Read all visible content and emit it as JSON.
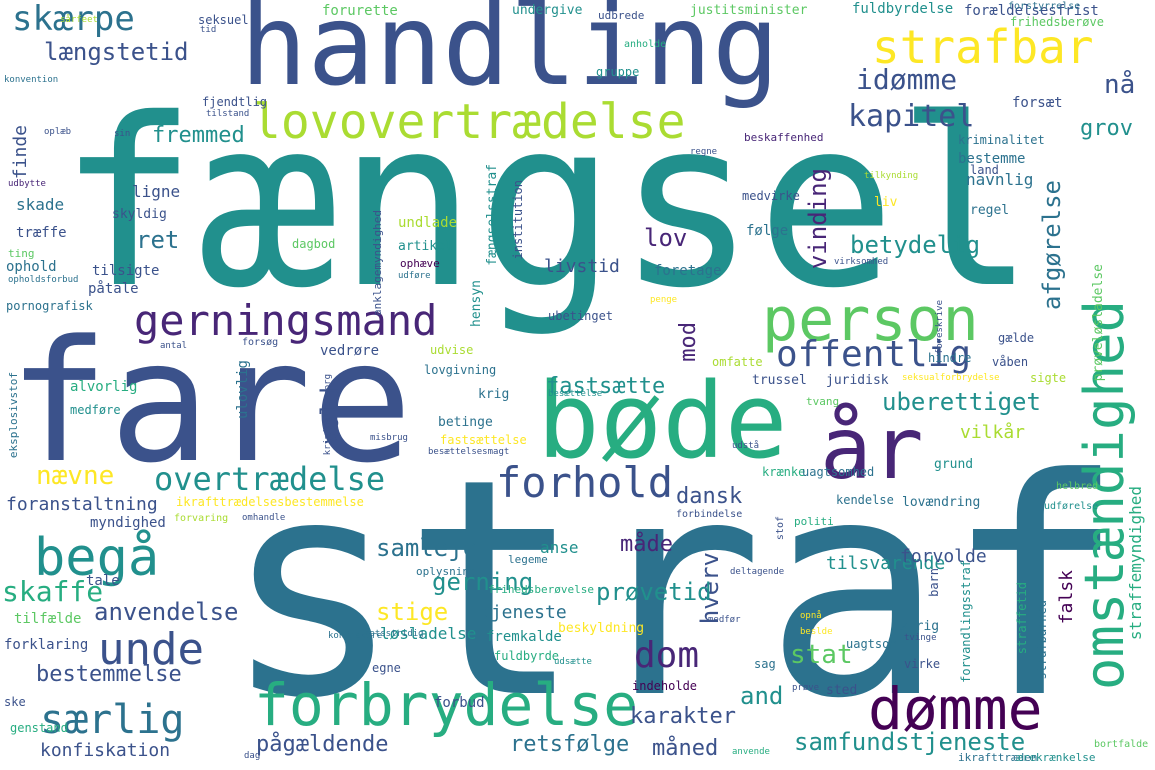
{
  "colors": {
    "background": "#ffffff",
    "palette": [
      "#440154",
      "#482677",
      "#3b528b",
      "#2c728e",
      "#21908d",
      "#27ad81",
      "#5cc863",
      "#aadc32",
      "#fde725"
    ]
  },
  "words": [
    {
      "text": "straf",
      "color": "#2c728e"
    },
    {
      "text": "fængsel",
      "color": "#21908d"
    },
    {
      "text": "fare",
      "color": "#3b528b"
    },
    {
      "text": "handling",
      "color": "#3b528b"
    },
    {
      "text": "bøde",
      "color": "#27ad81"
    },
    {
      "text": "år",
      "color": "#482677"
    },
    {
      "text": "person",
      "color": "#5cc863"
    },
    {
      "text": "omstændighed",
      "color": "#27ad81"
    },
    {
      "text": "forbrydelse",
      "color": "#27ad81"
    },
    {
      "text": "lovovertrædelse",
      "color": "#aadc32"
    },
    {
      "text": "strafbar",
      "color": "#fde725"
    },
    {
      "text": "begå",
      "color": "#21908d"
    },
    {
      "text": "gerningsmand",
      "color": "#482677"
    },
    {
      "text": "dømme",
      "color": "#440154"
    },
    {
      "text": "særlig",
      "color": "#2c728e"
    },
    {
      "text": "unde",
      "color": "#3b528b"
    },
    {
      "text": "offentlig",
      "color": "#3b528b"
    },
    {
      "text": "forhold",
      "color": "#3b528b"
    },
    {
      "text": "overtrædelse",
      "color": "#21908d"
    },
    {
      "text": "skærpe",
      "color": "#2c728e"
    },
    {
      "text": "længstetid",
      "color": "#3b528b"
    },
    {
      "text": "idømme",
      "color": "#3b528b"
    },
    {
      "text": "kapitel",
      "color": "#3b528b"
    },
    {
      "text": "nå",
      "color": "#3b528b"
    },
    {
      "text": "dom",
      "color": "#482677"
    },
    {
      "text": "nævne",
      "color": "#fde725"
    },
    {
      "text": "uberettiget",
      "color": "#21908d"
    },
    {
      "text": "betydelig",
      "color": "#21908d"
    },
    {
      "text": "fremmed",
      "color": "#21908d"
    },
    {
      "text": "ret",
      "color": "#2c728e"
    },
    {
      "text": "lov",
      "color": "#482677"
    },
    {
      "text": "vinding",
      "color": "#482677"
    },
    {
      "text": "afgørelse",
      "color": "#2c728e"
    },
    {
      "text": "grov",
      "color": "#21908d"
    },
    {
      "text": "mod",
      "color": "#482677"
    },
    {
      "text": "fastsætte",
      "color": "#21908d"
    },
    {
      "text": "vold",
      "color": "#3b528b"
    },
    {
      "text": "dansk",
      "color": "#3b528b"
    },
    {
      "text": "gerning",
      "color": "#21908d"
    },
    {
      "text": "samleje",
      "color": "#2c728e"
    },
    {
      "text": "stige",
      "color": "#fde725"
    },
    {
      "text": "skaffe",
      "color": "#27ad81"
    },
    {
      "text": "anvendelse",
      "color": "#3b528b"
    },
    {
      "text": "bestemmelse",
      "color": "#3b528b"
    },
    {
      "text": "måde",
      "color": "#482677"
    },
    {
      "text": "hverv",
      "color": "#3b528b"
    },
    {
      "text": "prøvetid",
      "color": "#21908d"
    },
    {
      "text": "stat",
      "color": "#5cc863"
    },
    {
      "text": "samfundstjeneste",
      "color": "#21908d"
    },
    {
      "text": "karakter",
      "color": "#3b528b"
    },
    {
      "text": "and",
      "color": "#21908d"
    },
    {
      "text": "pågældende",
      "color": "#3b528b"
    },
    {
      "text": "retsfølge",
      "color": "#2c728e"
    },
    {
      "text": "måned",
      "color": "#3b528b"
    },
    {
      "text": "konfiskation",
      "color": "#3b528b"
    },
    {
      "text": "straffemyndighed",
      "color": "#27ad81"
    },
    {
      "text": "foranstaltning",
      "color": "#3b528b"
    },
    {
      "text": "vilkår",
      "color": "#aadc32"
    },
    {
      "text": "tilsvarende",
      "color": "#21908d"
    },
    {
      "text": "forvolde",
      "color": "#3b528b"
    },
    {
      "text": "tjeneste",
      "color": "#2c728e"
    },
    {
      "text": "løsladelse",
      "color": "#21908d"
    },
    {
      "text": "fremkalde",
      "color": "#21908d"
    },
    {
      "text": "livstid",
      "color": "#3b528b"
    },
    {
      "text": "foretage",
      "color": "#2c728e"
    },
    {
      "text": "falsk",
      "color": "#440154"
    },
    {
      "text": "finde",
      "color": "#3b528b"
    },
    {
      "text": "skade",
      "color": "#2c728e"
    },
    {
      "text": "ligne",
      "color": "#3b528b"
    },
    {
      "text": "navnlig",
      "color": "#2c728e"
    },
    {
      "text": "bestemme",
      "color": "#2c728e"
    },
    {
      "text": "forsæt",
      "color": "#3b528b"
    },
    {
      "text": "kriminalitet",
      "color": "#2c728e"
    },
    {
      "text": "beskaffenhed",
      "color": "#482677"
    },
    {
      "text": "fjendtlig",
      "color": "#3b528b"
    },
    {
      "text": "forurette",
      "color": "#5cc863"
    },
    {
      "text": "fuldbyrdelse",
      "color": "#21908d"
    },
    {
      "text": "justitsminister",
      "color": "#5cc863"
    },
    {
      "text": "forældelsesfrist",
      "color": "#3b528b"
    },
    {
      "text": "undergive",
      "color": "#21908d"
    },
    {
      "text": "seksuel",
      "color": "#3b528b"
    },
    {
      "text": "udbrede",
      "color": "#3b528b"
    },
    {
      "text": "frihedsberøve",
      "color": "#5cc863"
    },
    {
      "text": "forstyrrelse",
      "color": "#2c728e"
    },
    {
      "text": "gruppe",
      "color": "#21908d"
    },
    {
      "text": "anholde",
      "color": "#27ad81"
    },
    {
      "text": "skyldig",
      "color": "#3b528b"
    },
    {
      "text": "træffe",
      "color": "#3b528b"
    },
    {
      "text": "ophold",
      "color": "#2c728e"
    },
    {
      "text": "tilsigte",
      "color": "#3b528b"
    },
    {
      "text": "påtale",
      "color": "#3b528b"
    },
    {
      "text": "pornografisk",
      "color": "#2c728e"
    },
    {
      "text": "alvorlig",
      "color": "#27ad81"
    },
    {
      "text": "medføre",
      "color": "#21908d"
    },
    {
      "text": "forklaring",
      "color": "#3b528b"
    },
    {
      "text": "tilfælde",
      "color": "#5cc863"
    },
    {
      "text": "tale",
      "color": "#3b528b"
    },
    {
      "text": "myndighed",
      "color": "#3b528b"
    },
    {
      "text": "genstand",
      "color": "#27ad81"
    },
    {
      "text": "ske",
      "color": "#3b528b"
    },
    {
      "text": "undlade",
      "color": "#aadc32"
    },
    {
      "text": "dagbod",
      "color": "#5cc863"
    },
    {
      "text": "artikel",
      "color": "#21908d"
    },
    {
      "text": "ophæve",
      "color": "#440154"
    },
    {
      "text": "følge",
      "color": "#2c728e"
    },
    {
      "text": "medvirke",
      "color": "#3b528b"
    },
    {
      "text": "liv",
      "color": "#fde725"
    },
    {
      "text": "regel",
      "color": "#2c728e"
    },
    {
      "text": "land",
      "color": "#3b528b"
    },
    {
      "text": "ubetinget",
      "color": "#3b528b"
    },
    {
      "text": "hensyn",
      "color": "#21908d"
    },
    {
      "text": "fængselsstraf",
      "color": "#21908d"
    },
    {
      "text": "institution",
      "color": "#3b528b"
    },
    {
      "text": "anklagemyndighed",
      "color": "#3b528b"
    },
    {
      "text": "vedrøre",
      "color": "#3b528b"
    },
    {
      "text": "udvise",
      "color": "#aadc32"
    },
    {
      "text": "ulovlig",
      "color": "#2c728e"
    },
    {
      "text": "forsøg",
      "color": "#3b528b"
    },
    {
      "text": "lovgivning",
      "color": "#2c728e"
    },
    {
      "text": "krig",
      "color": "#2c728e"
    },
    {
      "text": "betinge",
      "color": "#2c728e"
    },
    {
      "text": "fastsættelse",
      "color": "#fde725"
    },
    {
      "text": "ikrafttrædelsesbestemmelse",
      "color": "#fde725"
    },
    {
      "text": "omfatte",
      "color": "#aadc32"
    },
    {
      "text": "hindre",
      "color": "#2c728e"
    },
    {
      "text": "våben",
      "color": "#3b528b"
    },
    {
      "text": "sigte",
      "color": "#aadc32"
    },
    {
      "text": "gælde",
      "color": "#3b528b"
    },
    {
      "text": "trussel",
      "color": "#3b528b"
    },
    {
      "text": "juridisk",
      "color": "#3b528b"
    },
    {
      "text": "tvang",
      "color": "#5cc863"
    },
    {
      "text": "krænke",
      "color": "#27ad81"
    },
    {
      "text": "uagtsomhed",
      "color": "#2c728e"
    },
    {
      "text": "grund",
      "color": "#21908d"
    },
    {
      "text": "kendelse",
      "color": "#2c728e"
    },
    {
      "text": "lovændring",
      "color": "#2c728e"
    },
    {
      "text": "prøveløsladelse",
      "color": "#5cc863"
    },
    {
      "text": "anse",
      "color": "#21908d"
    },
    {
      "text": "legeme",
      "color": "#2c728e"
    },
    {
      "text": "oplysning",
      "color": "#2c728e"
    },
    {
      "text": "frihedsberøvelse",
      "color": "#27ad81"
    },
    {
      "text": "beskyldning",
      "color": "#fde725"
    },
    {
      "text": "egne",
      "color": "#3b528b"
    },
    {
      "text": "fuldbyrde",
      "color": "#27ad81"
    },
    {
      "text": "forbud",
      "color": "#3b528b"
    },
    {
      "text": "indeholde",
      "color": "#440154"
    },
    {
      "text": "uagtsom",
      "color": "#2c728e"
    },
    {
      "text": "sag",
      "color": "#2c728e"
    },
    {
      "text": "sted",
      "color": "#3b528b"
    },
    {
      "text": "virke",
      "color": "#3b528b"
    },
    {
      "text": "øvrig",
      "color": "#2c728e"
    },
    {
      "text": "forvandlingsstraf",
      "color": "#21908d"
    },
    {
      "text": "barn",
      "color": "#3b528b"
    },
    {
      "text": "straffetid",
      "color": "#27ad81"
    },
    {
      "text": "strafbarhed",
      "color": "#2c728e"
    },
    {
      "text": "stof",
      "color": "#3b528b"
    },
    {
      "text": "politi",
      "color": "#27ad81"
    },
    {
      "text": "forbindelse",
      "color": "#3b528b"
    },
    {
      "text": "udførelse",
      "color": "#21908d"
    },
    {
      "text": "helbred",
      "color": "#5cc863"
    },
    {
      "text": "forvaring",
      "color": "#aadc32"
    },
    {
      "text": "omhandle",
      "color": "#3b528b"
    },
    {
      "text": "anvende",
      "color": "#27ad81"
    },
    {
      "text": "dag",
      "color": "#3b528b"
    },
    {
      "text": "ikrafttræden",
      "color": "#2c728e"
    },
    {
      "text": "ærekrænkelse",
      "color": "#21908d"
    },
    {
      "text": "bortfalde",
      "color": "#5cc863"
    },
    {
      "text": "tilstand",
      "color": "#3b528b"
    },
    {
      "text": "sin",
      "color": "#3b528b"
    },
    {
      "text": "oplæb",
      "color": "#3b528b"
    },
    {
      "text": "konvention",
      "color": "#2c728e"
    },
    {
      "text": "tid",
      "color": "#3b528b"
    },
    {
      "text": "sårfeet",
      "color": "#aadc32"
    },
    {
      "text": "udbytte",
      "color": "#482677"
    },
    {
      "text": "ting",
      "color": "#5cc863"
    },
    {
      "text": "opholdsforbud",
      "color": "#2c728e"
    },
    {
      "text": "udføre",
      "color": "#2c728e"
    },
    {
      "text": "kriminalforsorg",
      "color": "#3b528b"
    },
    {
      "text": "antal",
      "color": "#3b528b"
    },
    {
      "text": "eksplosivstof",
      "color": "#2c728e"
    },
    {
      "text": "misbrug",
      "color": "#3b528b"
    },
    {
      "text": "besættelse",
      "color": "#21908d"
    },
    {
      "text": "besættelsesmagt",
      "color": "#3b528b"
    },
    {
      "text": "tilkynding",
      "color": "#aadc32"
    },
    {
      "text": "regne",
      "color": "#3b528b"
    },
    {
      "text": "virksomhed",
      "color": "#3b528b"
    },
    {
      "text": "penge",
      "color": "#fde725"
    },
    {
      "text": "foreskrive",
      "color": "#3b528b"
    },
    {
      "text": "seksualforbrydelse",
      "color": "#fde725"
    },
    {
      "text": "udstå",
      "color": "#3b528b"
    },
    {
      "text": "konfiskere",
      "color": "#2c728e"
    },
    {
      "text": "retsstridig",
      "color": "#2c728e"
    },
    {
      "text": "udsætte",
      "color": "#21908d"
    },
    {
      "text": "prøve",
      "color": "#3b528b"
    },
    {
      "text": "opnå",
      "color": "#fde725"
    },
    {
      "text": "beslde",
      "color": "#fde725"
    },
    {
      "text": "tvinge",
      "color": "#3b528b"
    },
    {
      "text": "deltagende",
      "color": "#3b528b"
    },
    {
      "text": "medfør",
      "color": "#3b528b"
    }
  ]
}
